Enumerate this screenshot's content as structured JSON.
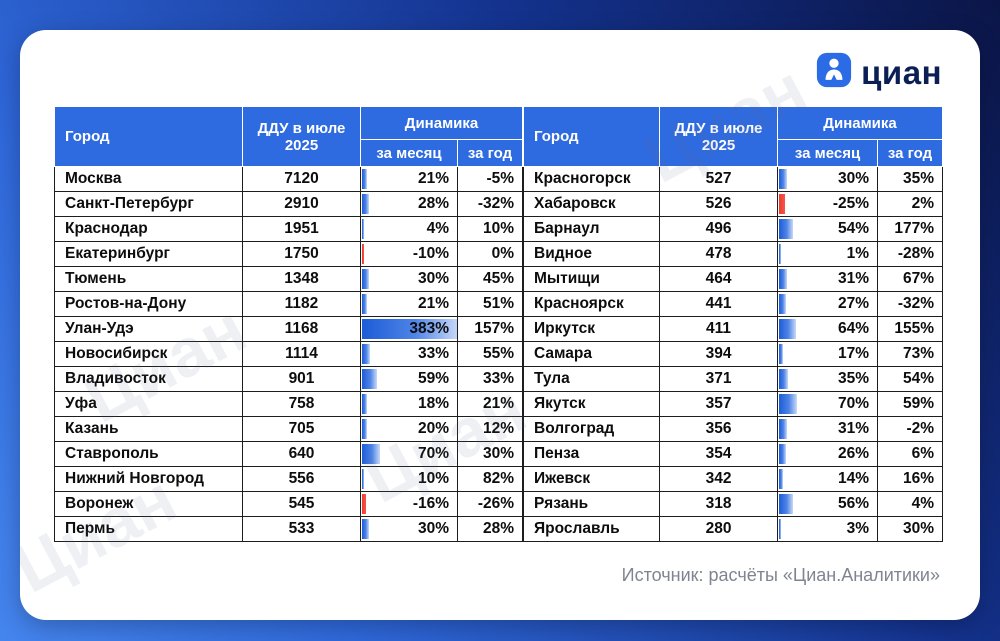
{
  "logo": {
    "brand": "циан"
  },
  "source_note": "Источник: расчёты «Циан.Аналитики»",
  "watermark": "Циан",
  "colors": {
    "header_blue": "#2e6ae0",
    "bar_positive": "#1d5cd8",
    "bar_negative": "#ee3b2d",
    "background_dark": "#0b1547",
    "background_bright": "#4585ee",
    "logo_navy": "#0b1f55",
    "source_gray": "#7e8590"
  },
  "chart_data": {
    "type": "table",
    "title": "ДДУ в июле 2025",
    "headers": {
      "city": "Город",
      "ddu": "ДДУ в июле 2025",
      "dynamics": "Динамика",
      "month": "за месяц",
      "year": "за год"
    },
    "bar_scale_max": 383,
    "bar_column": "за месяц",
    "left_rows": [
      {
        "city": "Москва",
        "ddu": 7120,
        "month": 21,
        "year": -5
      },
      {
        "city": "Санкт-Петербург",
        "ddu": 2910,
        "month": 28,
        "year": -32
      },
      {
        "city": "Краснодар",
        "ddu": 1951,
        "month": 4,
        "year": 10
      },
      {
        "city": "Екатеринбург",
        "ddu": 1750,
        "month": -10,
        "year": 0
      },
      {
        "city": "Тюмень",
        "ddu": 1348,
        "month": 30,
        "year": 45
      },
      {
        "city": "Ростов-на-Дону",
        "ddu": 1182,
        "month": 21,
        "year": 51
      },
      {
        "city": "Улан-Удэ",
        "ddu": 1168,
        "month": 383,
        "year": 157
      },
      {
        "city": "Новосибирск",
        "ddu": 1114,
        "month": 33,
        "year": 55
      },
      {
        "city": "Владивосток",
        "ddu": 901,
        "month": 59,
        "year": 33
      },
      {
        "city": "Уфа",
        "ddu": 758,
        "month": 18,
        "year": 21
      },
      {
        "city": "Казань",
        "ddu": 705,
        "month": 20,
        "year": 12
      },
      {
        "city": "Ставрополь",
        "ddu": 640,
        "month": 70,
        "year": 30
      },
      {
        "city": "Нижний Новгород",
        "ddu": 556,
        "month": 10,
        "year": 82
      },
      {
        "city": "Воронеж",
        "ddu": 545,
        "month": -16,
        "year": -26
      },
      {
        "city": "Пермь",
        "ddu": 533,
        "month": 30,
        "year": 28
      }
    ],
    "right_rows": [
      {
        "city": "Красногорск",
        "ddu": 527,
        "month": 30,
        "year": 35
      },
      {
        "city": "Хабаровск",
        "ddu": 526,
        "month": -25,
        "year": 2
      },
      {
        "city": "Барнаул",
        "ddu": 496,
        "month": 54,
        "year": 177
      },
      {
        "city": "Видное",
        "ddu": 478,
        "month": 1,
        "year": -28
      },
      {
        "city": "Мытищи",
        "ddu": 464,
        "month": 31,
        "year": 67
      },
      {
        "city": "Красноярск",
        "ddu": 441,
        "month": 27,
        "year": -32
      },
      {
        "city": "Иркутск",
        "ddu": 411,
        "month": 64,
        "year": 155
      },
      {
        "city": "Самара",
        "ddu": 394,
        "month": 17,
        "year": 73
      },
      {
        "city": "Тула",
        "ddu": 371,
        "month": 35,
        "year": 54
      },
      {
        "city": "Якутск",
        "ddu": 357,
        "month": 70,
        "year": 59
      },
      {
        "city": "Волгоград",
        "ddu": 356,
        "month": 31,
        "year": -2
      },
      {
        "city": "Пенза",
        "ddu": 354,
        "month": 26,
        "year": 6
      },
      {
        "city": "Ижевск",
        "ddu": 342,
        "month": 14,
        "year": 16
      },
      {
        "city": "Рязань",
        "ddu": 318,
        "month": 56,
        "year": 4
      },
      {
        "city": "Ярославль",
        "ddu": 280,
        "month": 3,
        "year": 30
      }
    ]
  }
}
